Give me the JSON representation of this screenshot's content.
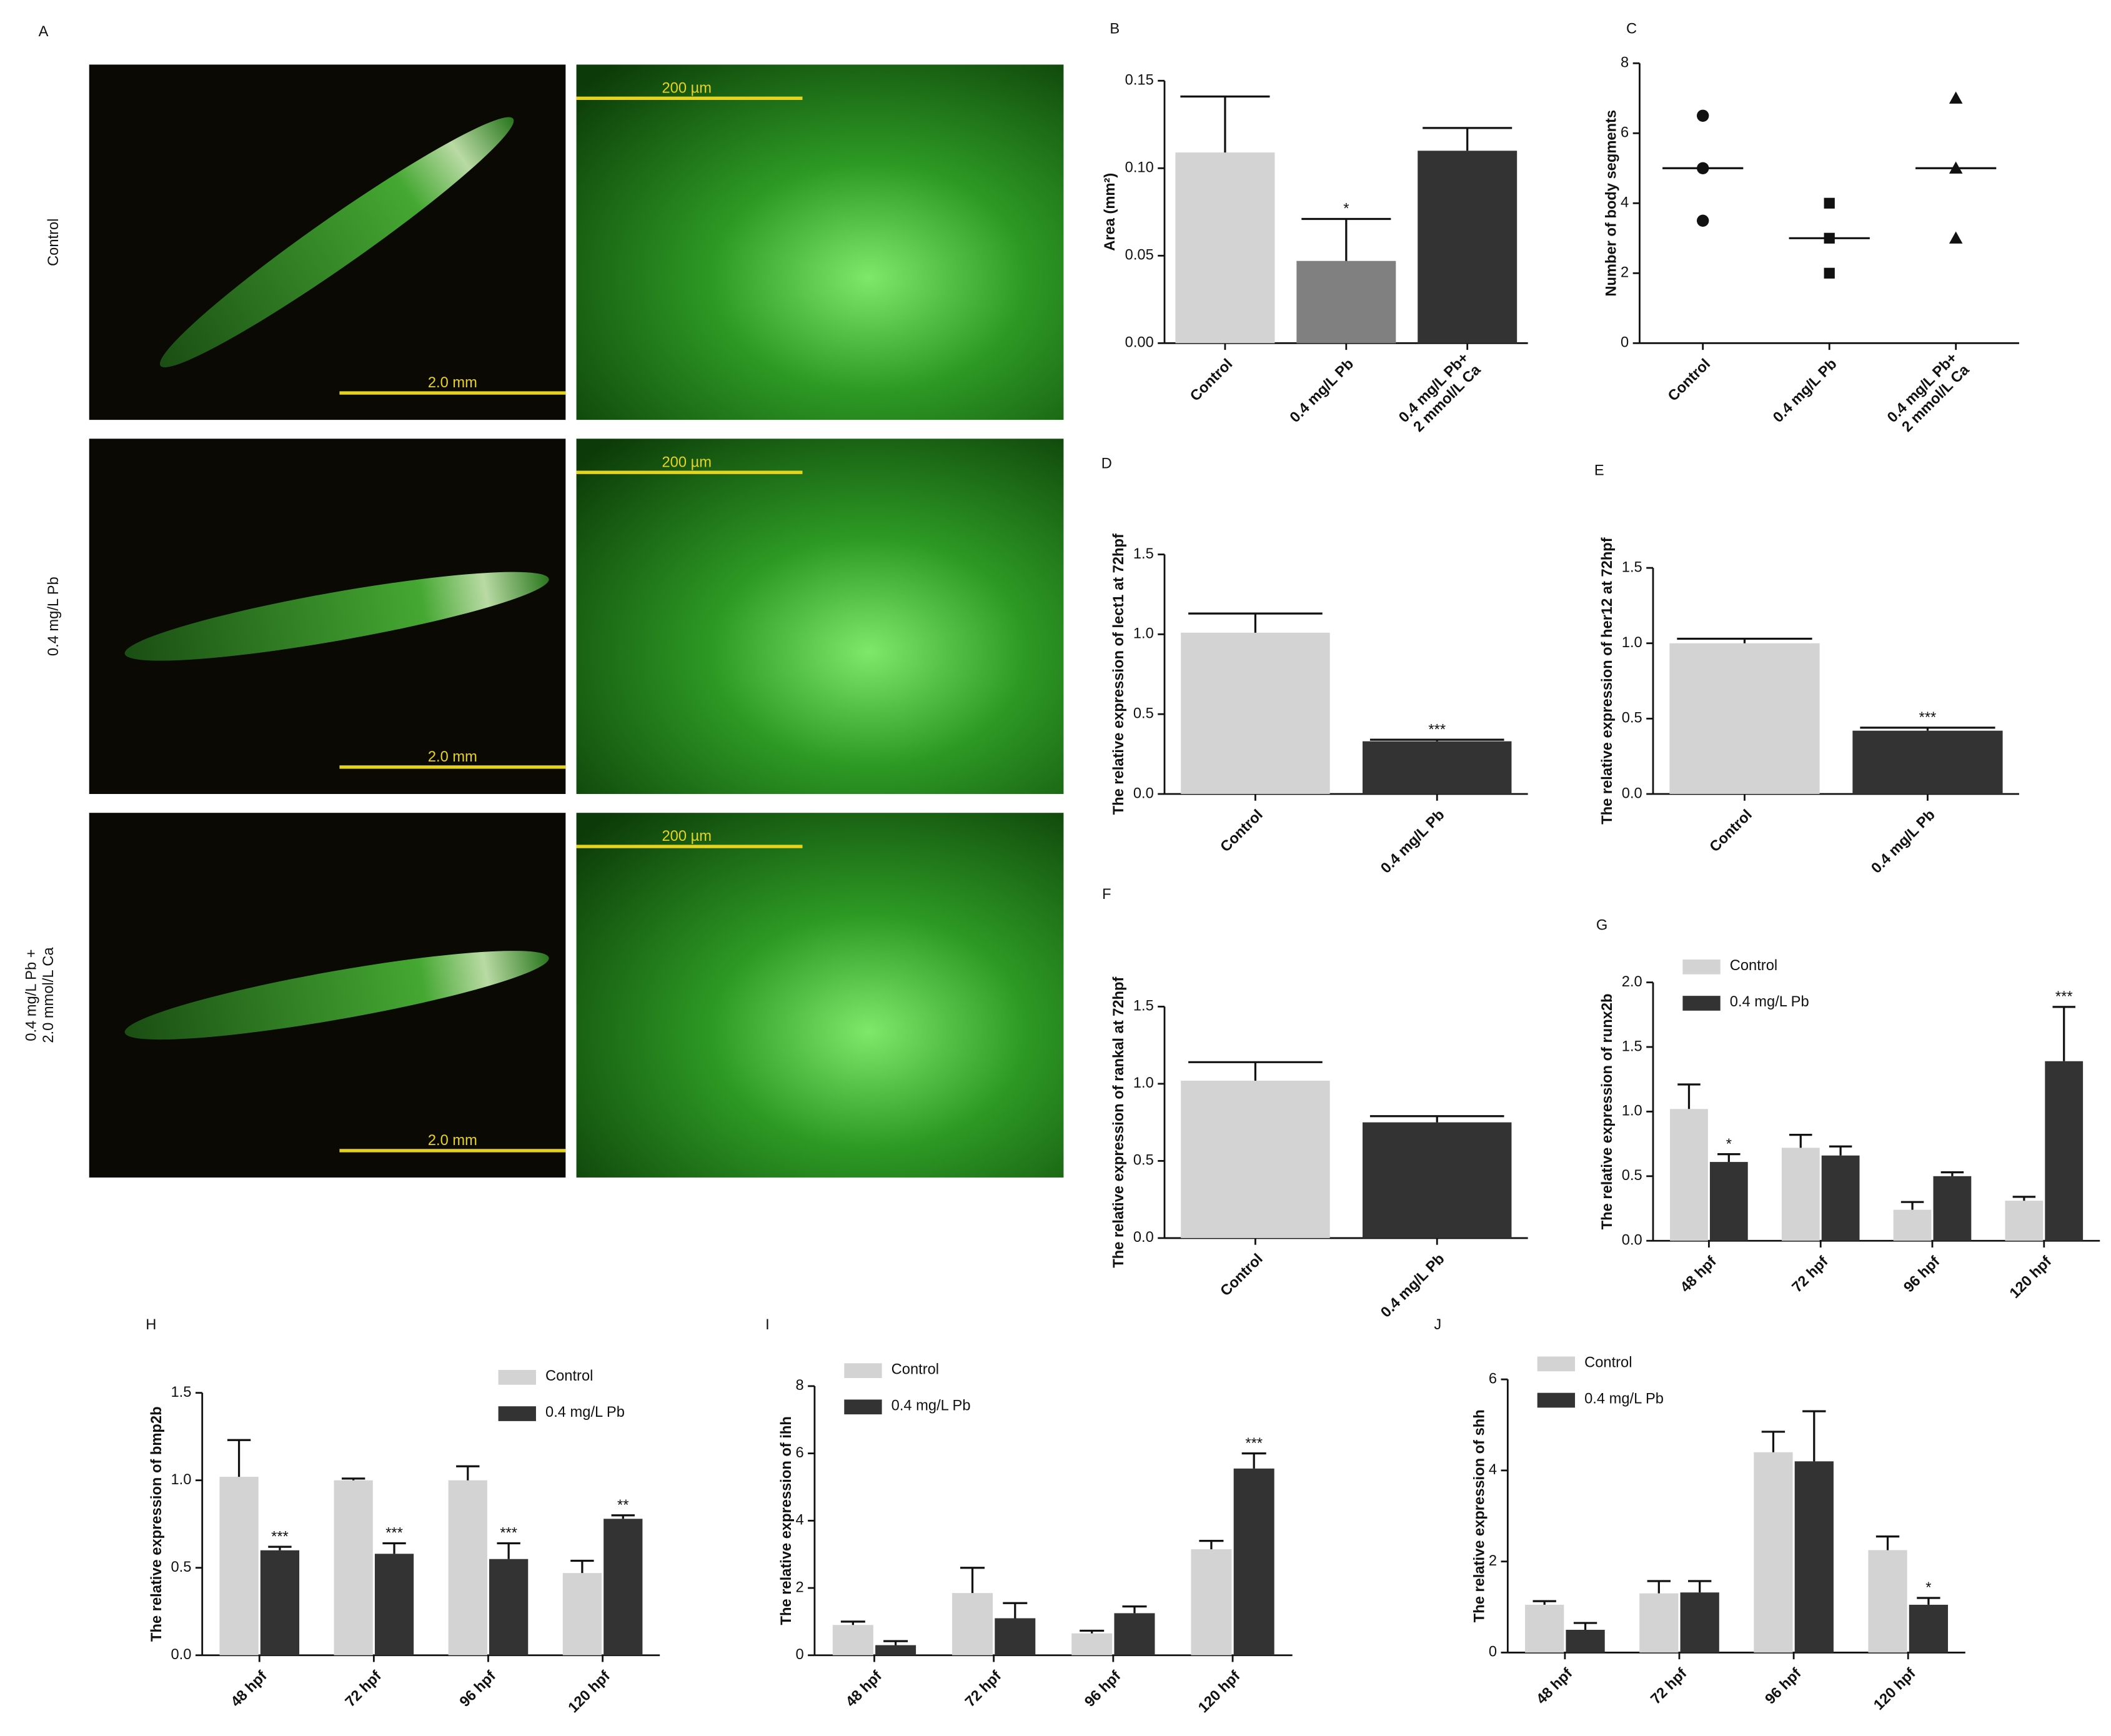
{
  "panel_a": {
    "label": "A",
    "rows": [
      {
        "name": "Control",
        "scale_bars": [
          "2.0 mm",
          "200 µm"
        ]
      },
      {
        "name": "0.4 mg/L Pb",
        "scale_bars": [
          "2.0 mm",
          "200 µm"
        ]
      },
      {
        "name": "0.4 mg/L Pb +\n2.0 mmol/L Ca",
        "scale_bars": [
          "2.0 mm",
          "200 µm"
        ]
      }
    ]
  },
  "chart_data": [
    {
      "type": "bar",
      "label": "B",
      "ylabel": "Area (mm²)",
      "categories": [
        "Control",
        "0.4 mg/L Pb",
        "0.4 mg/L Pb+\n2 mmol/L Ca"
      ],
      "values": [
        0.109,
        0.047,
        0.11
      ],
      "errors": [
        0.032,
        0.024,
        0.013
      ],
      "colors": [
        "#d3d3d3",
        "#808080",
        "#333333"
      ],
      "annotations": [
        null,
        "*",
        null
      ],
      "ylim": [
        0,
        0.15
      ],
      "yticks": [
        {
          "value": 0,
          "label": "0.00"
        },
        {
          "value": 0.05,
          "label": "0.05"
        },
        {
          "value": 0.1,
          "label": "0.10"
        },
        {
          "value": 0.15,
          "label": "0.15"
        }
      ]
    },
    {
      "type": "dot",
      "label": "C",
      "ylabel": "Number of body segments",
      "categories": [
        "Control",
        "0.4 mg/L Pb",
        "0.4 mg/L Pb+\n2 mmol/L Ca"
      ],
      "values": [
        [
          6.5,
          5,
          3.5
        ],
        [
          4,
          3,
          2
        ],
        [
          7,
          5,
          3
        ]
      ],
      "means": [
        5,
        3,
        5
      ],
      "markers": [
        "circle",
        "square",
        "triangle"
      ],
      "color": "#111111",
      "ylim": [
        0,
        8
      ],
      "yticks": [
        0,
        2,
        4,
        6,
        8
      ]
    },
    {
      "type": "bar",
      "label": "D",
      "ylabel": "The relative expression of lect1 at 72hpf",
      "categories": [
        "Control",
        "0.4 mg/L Pb"
      ],
      "values": [
        1.01,
        0.33
      ],
      "errors": [
        0.12,
        0.01
      ],
      "colors": [
        "#d3d3d3",
        "#333333"
      ],
      "annotations": [
        null,
        "***"
      ],
      "ylim": [
        0,
        1.5
      ],
      "yticks": [
        {
          "value": 0,
          "label": "0.0"
        },
        0.5,
        {
          "value": 1,
          "label": "1.0"
        },
        1.5
      ]
    },
    {
      "type": "bar",
      "label": "E",
      "ylabel": "The relative expression of her12 at 72hpf",
      "categories": [
        "Control",
        "0.4 mg/L Pb"
      ],
      "values": [
        1.0,
        0.42
      ],
      "errors": [
        0.03,
        0.02
      ],
      "colors": [
        "#d3d3d3",
        "#333333"
      ],
      "annotations": [
        null,
        "***"
      ],
      "ylim": [
        0,
        1.5
      ],
      "yticks": [
        {
          "value": 0,
          "label": "0.0"
        },
        0.5,
        {
          "value": 1,
          "label": "1.0"
        },
        1.5
      ]
    },
    {
      "type": "bar",
      "label": "F",
      "ylabel": "The relative expression of rankal at 72hpf",
      "categories": [
        "Control",
        "0.4 mg/L Pb"
      ],
      "values": [
        1.02,
        0.75
      ],
      "errors": [
        0.12,
        0.04
      ],
      "colors": [
        "#d3d3d3",
        "#333333"
      ],
      "ylim": [
        0,
        1.5
      ],
      "yticks": [
        {
          "value": 0,
          "label": "0.0"
        },
        0.5,
        {
          "value": 1,
          "label": "1.0"
        },
        1.5
      ]
    },
    {
      "type": "grouped",
      "label": "G",
      "ylabel": "The relative expression of runx2b",
      "categories": [
        "48 hpf",
        "72 hpf",
        "96 hpf",
        "120 hpf"
      ],
      "series": [
        {
          "name": "Control",
          "color": "#d3d3d3",
          "values": [
            1.02,
            0.72,
            0.24,
            0.31
          ],
          "errors": [
            0.19,
            0.1,
            0.06,
            0.03
          ]
        },
        {
          "name": "0.4 mg/L Pb",
          "color": "#333333",
          "values": [
            0.61,
            0.66,
            0.5,
            1.39
          ],
          "errors": [
            0.06,
            0.07,
            0.03,
            0.42
          ],
          "annotations": [
            "*",
            null,
            null,
            "***"
          ]
        }
      ],
      "legend": "upper left",
      "ylim": [
        0,
        2
      ],
      "yticks": [
        {
          "value": 0,
          "label": "0.0"
        },
        0.5,
        {
          "value": 1,
          "label": "1.0"
        },
        1.5,
        {
          "value": 2,
          "label": "2.0"
        }
      ]
    },
    {
      "type": "grouped",
      "label": "H",
      "ylabel": "The relative expression of bmp2b",
      "categories": [
        "48 hpf",
        "72 hpf",
        "96 hpf",
        "120 hpf"
      ],
      "series": [
        {
          "name": "Control",
          "color": "#d3d3d3",
          "values": [
            1.02,
            1.0,
            1.0,
            0.47
          ],
          "errors": [
            0.21,
            0.01,
            0.08,
            0.07
          ]
        },
        {
          "name": "0.4 mg/L Pb",
          "color": "#333333",
          "values": [
            0.6,
            0.58,
            0.55,
            0.78
          ],
          "errors": [
            0.02,
            0.06,
            0.09,
            0.02
          ],
          "annotations": [
            "***",
            "***",
            "***",
            "**"
          ]
        }
      ],
      "legend": "upper right",
      "ylim": [
        0,
        1.5
      ],
      "yticks": [
        {
          "value": 0,
          "label": "0.0"
        },
        0.5,
        {
          "value": 1,
          "label": "1.0"
        },
        1.5
      ]
    },
    {
      "type": "grouped",
      "label": "I",
      "ylabel": "The relative expression of ihh",
      "categories": [
        "48 hpf",
        "72 hpf",
        "96 hpf",
        "120 hpf"
      ],
      "series": [
        {
          "name": "Control",
          "color": "#d3d3d3",
          "values": [
            0.9,
            1.85,
            0.65,
            3.15
          ],
          "errors": [
            0.1,
            0.75,
            0.08,
            0.25
          ]
        },
        {
          "name": "0.4 mg/L Pb",
          "color": "#333333",
          "values": [
            0.3,
            1.1,
            1.25,
            5.55
          ],
          "errors": [
            0.12,
            0.45,
            0.2,
            0.45
          ],
          "annotations": [
            null,
            null,
            null,
            "***"
          ]
        }
      ],
      "legend": "upper left",
      "ylim": [
        0,
        8
      ],
      "yticks": [
        0,
        2,
        4,
        6,
        8
      ]
    },
    {
      "type": "grouped",
      "label": "J",
      "ylabel": "The relative expression of shh",
      "categories": [
        "48 hpf",
        "72 hpf",
        "96 hpf",
        "120 hpf"
      ],
      "series": [
        {
          "name": "Control",
          "color": "#d3d3d3",
          "values": [
            1.05,
            1.3,
            4.4,
            2.25
          ],
          "errors": [
            0.08,
            0.27,
            0.45,
            0.3
          ]
        },
        {
          "name": "0.4 mg/L Pb",
          "color": "#333333",
          "values": [
            0.5,
            1.32,
            4.2,
            1.05
          ],
          "errors": [
            0.15,
            0.25,
            1.1,
            0.15
          ],
          "annotations": [
            null,
            null,
            null,
            "*"
          ]
        }
      ],
      "legend": "upper left",
      "ylim": [
        0,
        6
      ],
      "yticks": [
        0,
        2,
        4,
        6
      ]
    }
  ]
}
